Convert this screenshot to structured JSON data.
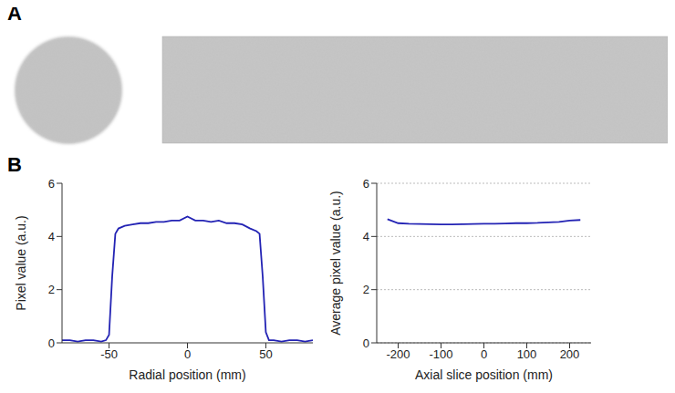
{
  "panel_labels": [
    "A",
    "B"
  ],
  "chart_data": [
    {
      "type": "line",
      "x_label": "Radial position (mm)",
      "y_label": "Pixel value (a.u.)",
      "x": [
        -80,
        -75,
        -70,
        -65,
        -60,
        -55,
        -52,
        -50,
        -48,
        -46,
        -44,
        -40,
        -35,
        -30,
        -25,
        -20,
        -15,
        -10,
        -5,
        0,
        5,
        10,
        15,
        20,
        25,
        30,
        35,
        40,
        44,
        46,
        48,
        50,
        52,
        55,
        60,
        65,
        70,
        75,
        80
      ],
      "series": [
        {
          "color": "#2323b4",
          "values": [
            0.1,
            0.1,
            0.05,
            0.1,
            0.1,
            0.05,
            0.1,
            0.3,
            2.5,
            4.1,
            4.3,
            4.4,
            4.45,
            4.5,
            4.5,
            4.55,
            4.55,
            4.6,
            4.6,
            4.75,
            4.6,
            4.6,
            4.55,
            4.6,
            4.5,
            4.5,
            4.45,
            4.3,
            4.2,
            4.1,
            2.5,
            0.4,
            0.1,
            0.1,
            0.05,
            0.1,
            0.1,
            0.05,
            0.1
          ]
        }
      ],
      "xlim": [
        -80,
        80
      ],
      "xticks": [
        -50,
        0,
        50
      ],
      "ylim": [
        0,
        6
      ],
      "yticks": [
        0,
        2,
        4,
        6
      ],
      "grid": false
    },
    {
      "type": "line",
      "x_label": "Axial slice position (mm)",
      "y_label": "Average pixel value (a.u.)",
      "x": [
        -225,
        -200,
        -175,
        -150,
        -125,
        -100,
        -75,
        -50,
        -25,
        0,
        25,
        50,
        75,
        100,
        125,
        150,
        175,
        200,
        225
      ],
      "series": [
        {
          "color": "#2323b4",
          "values": [
            4.65,
            4.5,
            4.48,
            4.47,
            4.46,
            4.45,
            4.45,
            4.46,
            4.47,
            4.48,
            4.48,
            4.49,
            4.5,
            4.5,
            4.51,
            4.53,
            4.55,
            4.6,
            4.62
          ]
        }
      ],
      "xlim": [
        -250,
        250
      ],
      "xticks": [
        -200,
        -100,
        0,
        100,
        200
      ],
      "ylim": [
        0,
        6
      ],
      "yticks": [
        0,
        2,
        4,
        6
      ],
      "grid": true
    }
  ]
}
